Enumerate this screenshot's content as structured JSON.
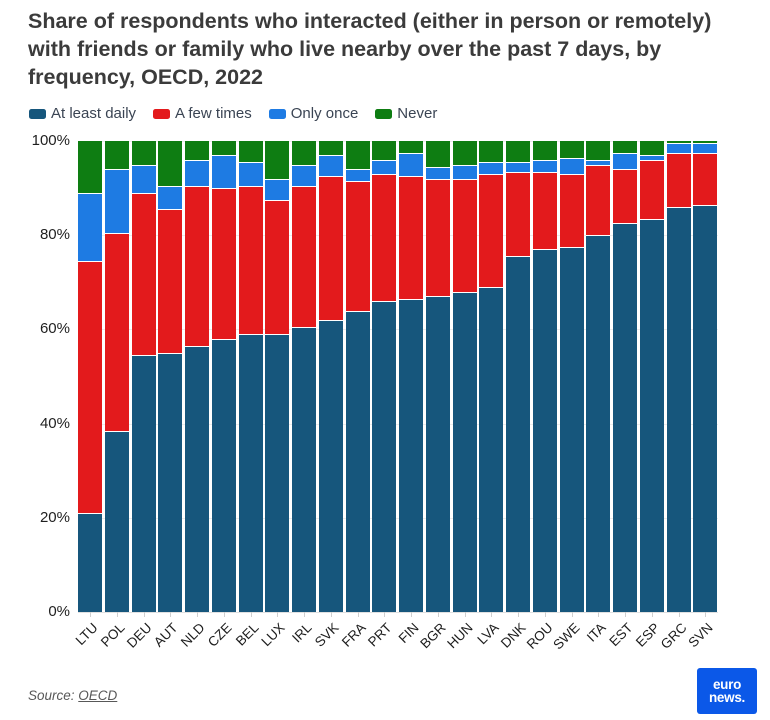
{
  "header": {
    "title": "Share of respondents who interacted (either in person or remotely) with friends or family who live nearby over the past 7 days, by frequency, OECD, 2022"
  },
  "source": {
    "prefix": "Source: ",
    "link_text": "OECD"
  },
  "logo": {
    "line1": "euro",
    "line2": "news.",
    "bg_color": "#0b58e8"
  },
  "colors": {
    "title_text": "#3b3b3b",
    "legend_text": "#3a4453",
    "axis_text": "#1f1f1f",
    "gridline": "#ececec",
    "background": "#ffffff"
  },
  "chart_data": {
    "type": "bar",
    "stacked": true,
    "unit": "%",
    "title": "Share of respondents who interacted (either in person or remotely) with friends or family who live nearby over the past 7 days, by frequency, OECD, 2022",
    "xlabel": "",
    "ylabel": "",
    "ylim": [
      0,
      100
    ],
    "grid": true,
    "legend_position": "top",
    "yticks": [
      0,
      20,
      40,
      60,
      80,
      100
    ],
    "ytick_labels": [
      "0%",
      "20%",
      "40%",
      "60%",
      "80%",
      "100%"
    ],
    "categories": [
      "LTU",
      "POL",
      "DEU",
      "AUT",
      "NLD",
      "CZE",
      "BEL",
      "LUX",
      "IRL",
      "SVK",
      "FRA",
      "PRT",
      "FIN",
      "BGR",
      "HUN",
      "LVA",
      "DNK",
      "ROU",
      "SWE",
      "ITA",
      "EST",
      "ESP",
      "GRC",
      "SVN"
    ],
    "series": [
      {
        "name": "At least daily",
        "color": "#16567c",
        "values": [
          21,
          38.5,
          54.5,
          55,
          56.5,
          58,
          59,
          59,
          60.5,
          62,
          64,
          66,
          66.5,
          67,
          68,
          69,
          75.5,
          77,
          77.5,
          80,
          82.5,
          83.5,
          86,
          86.5
        ]
      },
      {
        "name": "A few times",
        "color": "#e31a1c",
        "values": [
          53.5,
          42,
          34.5,
          30.5,
          34,
          32,
          31.5,
          28.5,
          30,
          30.5,
          27.5,
          27,
          26,
          25,
          24,
          24,
          18,
          16.5,
          15.5,
          15,
          11.5,
          12.5,
          11.5,
          11
        ]
      },
      {
        "name": "Only once",
        "color": "#1e7be3",
        "values": [
          14.5,
          13.5,
          6,
          5,
          5.5,
          7,
          5,
          4.5,
          4.5,
          4.5,
          2.5,
          3,
          5,
          2.5,
          3,
          2.5,
          2,
          2.5,
          3.5,
          1,
          3.5,
          1,
          2,
          2
        ]
      },
      {
        "name": "Never",
        "color": "#0e7d12",
        "values": [
          11,
          6,
          5,
          9.5,
          4,
          3,
          4.5,
          8,
          5,
          3,
          6,
          4,
          2.5,
          5.5,
          5,
          4.5,
          4.5,
          4,
          3.5,
          4,
          2.5,
          3,
          0.5,
          0.5
        ]
      }
    ]
  }
}
